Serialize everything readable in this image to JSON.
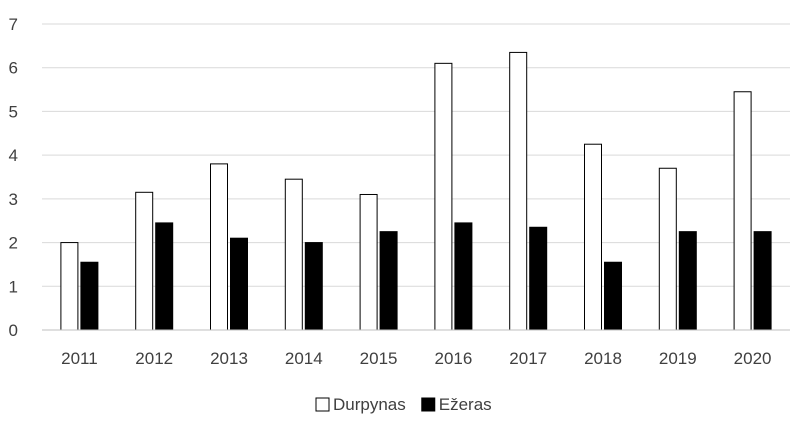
{
  "chart_data": {
    "type": "bar",
    "title": "",
    "xlabel": "",
    "ylabel": "",
    "categories": [
      "2011",
      "2012",
      "2013",
      "2014",
      "2015",
      "2016",
      "2017",
      "2018",
      "2019",
      "2020"
    ],
    "series": [
      {
        "name": "Durpynas",
        "values": [
          2.0,
          3.15,
          3.8,
          3.45,
          3.1,
          6.1,
          6.35,
          4.25,
          3.7,
          5.45
        ],
        "fill": "#ffffff",
        "stroke": "#000000"
      },
      {
        "name": "Ežeras",
        "values": [
          1.55,
          2.45,
          2.1,
          2.0,
          2.25,
          2.45,
          2.35,
          1.55,
          2.25,
          2.25
        ],
        "fill": "#000000",
        "stroke": "#000000"
      }
    ],
    "ylim": [
      0,
      7
    ],
    "yticks": [
      0,
      1,
      2,
      3,
      4,
      5,
      6,
      7
    ],
    "grid": true,
    "legend_position": "bottom"
  }
}
